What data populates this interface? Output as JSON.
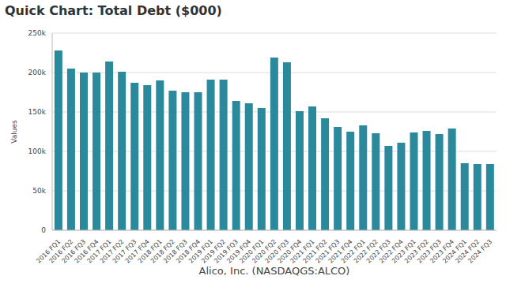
{
  "chart_data": {
    "type": "bar",
    "title": "Quick Chart: Total Debt ($000)",
    "x_label": "Alico, Inc. (NASDAQGS:ALCO)",
    "y_label": "Values",
    "categories": [
      "2016 FQ1",
      "2016 FQ2",
      "2016 FQ3",
      "2016 FQ4",
      "2017 FQ1",
      "2017 FQ2",
      "2017 FQ3",
      "2017 FQ4",
      "2018 FQ1",
      "2018 FQ2",
      "2018 FQ3",
      "2018 FQ4",
      "2019 FQ1",
      "2019 FQ2",
      "2019 FQ3",
      "2019 FQ4",
      "2020 FQ1",
      "2020 FQ2",
      "2020 FQ3",
      "2020 FQ4",
      "2021 FQ1",
      "2021 FQ2",
      "2021 FQ3",
      "2021 FQ4",
      "2022 FQ1",
      "2022 FQ2",
      "2022 FQ3",
      "2022 FQ4",
      "2023 FQ1",
      "2023 FQ2",
      "2023 FQ3",
      "2023 FQ4",
      "2024 FQ1",
      "2024 FQ2",
      "2024 FQ3"
    ],
    "values": [
      228000,
      205000,
      200000,
      200000,
      214000,
      201000,
      187000,
      184000,
      190000,
      177000,
      175000,
      175000,
      191000,
      191000,
      164000,
      161000,
      155000,
      219000,
      213000,
      151000,
      157000,
      142000,
      131000,
      125000,
      133000,
      123000,
      107000,
      111000,
      124000,
      126000,
      122000,
      129000,
      85000,
      84000,
      84000
    ],
    "color": "#2b899c",
    "ylim": [
      0,
      250000
    ],
    "yticks": [
      0,
      {
        "value": 50000,
        "label": "50k"
      },
      {
        "value": 100000,
        "label": "100k"
      },
      {
        "value": 150000,
        "label": "150k"
      },
      {
        "value": 200000,
        "label": "200k"
      },
      {
        "value": 250000,
        "label": "250k"
      }
    ],
    "grid": true
  }
}
